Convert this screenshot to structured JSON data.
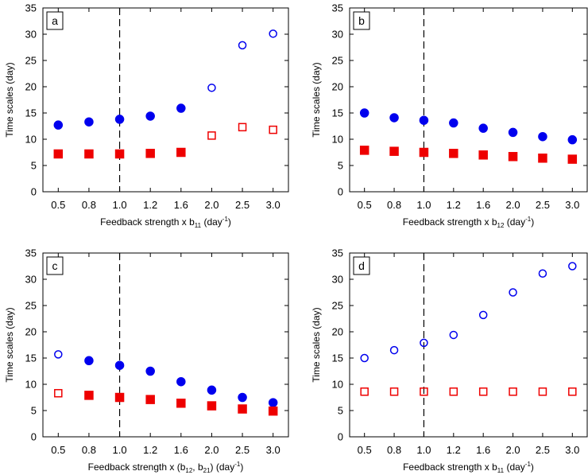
{
  "chart_data": [
    {
      "type": "scatter",
      "panel_label": "a",
      "xlabel": "Feedback strength x b",
      "xlabel_sub": "11",
      "xlabel_unit": "(day",
      "xlabel_unit_sup": "-1",
      "xlabel_unit_end": ")",
      "ylabel": "Time scales (day)",
      "ylim": [
        0,
        35
      ],
      "yticks": [
        0,
        5,
        10,
        15,
        20,
        25,
        30,
        35
      ],
      "xticks": [
        0.5,
        0.8,
        1.0,
        1.2,
        1.6,
        2.0,
        2.5,
        3.0
      ],
      "xtick_labels": [
        "0.5",
        "0.8",
        "1.0",
        "1.2",
        "1.6",
        "2.0",
        "2.5",
        "3.0"
      ],
      "reference_line_x": 1.0,
      "series": [
        {
          "marker": "circle",
          "color": "#0000ee",
          "x": [
            0.5,
            0.8,
            1.0,
            1.2,
            1.6,
            2.0,
            2.5,
            3.0
          ],
          "values": [
            12.7,
            13.3,
            13.8,
            14.4,
            15.9,
            19.8,
            27.9,
            30.1
          ],
          "filled": [
            true,
            true,
            true,
            true,
            true,
            false,
            false,
            false
          ]
        },
        {
          "marker": "square",
          "color": "#ee0000",
          "x": [
            0.5,
            0.8,
            1.0,
            1.2,
            1.6,
            2.0,
            2.5,
            3.0
          ],
          "values": [
            7.2,
            7.2,
            7.2,
            7.3,
            7.5,
            10.7,
            12.3,
            11.8
          ],
          "filled": [
            true,
            true,
            true,
            true,
            true,
            false,
            false,
            false
          ]
        }
      ]
    },
    {
      "type": "scatter",
      "panel_label": "b",
      "xlabel": "Feedback strength x b",
      "xlabel_sub": "12",
      "xlabel_unit": "(day",
      "xlabel_unit_sup": "-1",
      "xlabel_unit_end": ")",
      "ylabel": "Time scales (day)",
      "ylim": [
        0,
        35
      ],
      "yticks": [
        0,
        5,
        10,
        15,
        20,
        25,
        30,
        35
      ],
      "xticks": [
        0.5,
        0.8,
        1.0,
        1.2,
        1.6,
        2.0,
        2.5,
        3.0
      ],
      "xtick_labels": [
        "0.5",
        "0.8",
        "1.0",
        "1.2",
        "1.6",
        "2.0",
        "2.5",
        "3.0"
      ],
      "reference_line_x": 1.0,
      "series": [
        {
          "marker": "circle",
          "color": "#0000ee",
          "x": [
            0.5,
            0.8,
            1.0,
            1.2,
            1.6,
            2.0,
            2.5,
            3.0
          ],
          "values": [
            15.0,
            14.1,
            13.6,
            13.1,
            12.1,
            11.3,
            10.5,
            9.9
          ],
          "filled": [
            true,
            true,
            true,
            true,
            true,
            true,
            true,
            true
          ]
        },
        {
          "marker": "square",
          "color": "#ee0000",
          "x": [
            0.5,
            0.8,
            1.0,
            1.2,
            1.6,
            2.0,
            2.5,
            3.0
          ],
          "values": [
            7.9,
            7.7,
            7.5,
            7.3,
            7.0,
            6.7,
            6.4,
            6.2
          ],
          "filled": [
            true,
            true,
            true,
            true,
            true,
            true,
            true,
            true
          ]
        }
      ]
    },
    {
      "type": "scatter",
      "panel_label": "c",
      "xlabel": "Feedback strength x (b",
      "xlabel_sub": "12",
      "xlabel_mid": ", b",
      "xlabel_sub2": "21",
      "xlabel_unit": ") (day",
      "xlabel_unit_sup": "-1",
      "xlabel_unit_end": ")",
      "ylabel": "Time scales (day)",
      "ylim": [
        0,
        35
      ],
      "yticks": [
        0,
        5,
        10,
        15,
        20,
        25,
        30,
        35
      ],
      "xticks": [
        0.5,
        0.8,
        1.0,
        1.2,
        1.6,
        2.0,
        2.5,
        3.0
      ],
      "xtick_labels": [
        "0.5",
        "0.8",
        "1.0",
        "1.2",
        "1.6",
        "2.0",
        "2.5",
        "3.0"
      ],
      "reference_line_x": 1.0,
      "series": [
        {
          "marker": "circle",
          "color": "#0000ee",
          "x": [
            0.5,
            0.8,
            1.0,
            1.2,
            1.6,
            2.0,
            2.5,
            3.0
          ],
          "values": [
            15.7,
            14.5,
            13.6,
            12.5,
            10.5,
            8.9,
            7.5,
            6.5
          ],
          "filled": [
            false,
            true,
            true,
            true,
            true,
            true,
            true,
            true
          ]
        },
        {
          "marker": "square",
          "color": "#ee0000",
          "x": [
            0.5,
            0.8,
            1.0,
            1.2,
            1.6,
            2.0,
            2.5,
            3.0
          ],
          "values": [
            8.3,
            7.9,
            7.5,
            7.1,
            6.4,
            5.9,
            5.3,
            4.9
          ],
          "filled": [
            false,
            true,
            true,
            true,
            true,
            true,
            true,
            true
          ]
        }
      ]
    },
    {
      "type": "scatter",
      "panel_label": "d",
      "xlabel": "Feedback strength x b",
      "xlabel_sub": "11",
      "xlabel_unit": "(day",
      "xlabel_unit_sup": "-1",
      "xlabel_unit_end": ")",
      "ylabel": "Time scales (day)",
      "ylim": [
        0,
        35
      ],
      "yticks": [
        0,
        5,
        10,
        15,
        20,
        25,
        30,
        35
      ],
      "xticks": [
        0.5,
        0.8,
        1.0,
        1.2,
        1.6,
        2.0,
        2.5,
        3.0
      ],
      "xtick_labels": [
        "0.5",
        "0.8",
        "1.0",
        "1.2",
        "1.6",
        "2.0",
        "2.5",
        "3.0"
      ],
      "reference_line_x": 1.0,
      "series": [
        {
          "marker": "circle",
          "color": "#0000ee",
          "x": [
            0.5,
            0.8,
            1.0,
            1.2,
            1.6,
            2.0,
            2.5,
            3.0
          ],
          "values": [
            15.0,
            16.5,
            17.9,
            19.4,
            23.2,
            27.5,
            31.1,
            32.5
          ],
          "filled": [
            false,
            false,
            false,
            false,
            false,
            false,
            false,
            false
          ]
        },
        {
          "marker": "square",
          "color": "#ee0000",
          "x": [
            0.5,
            0.8,
            1.0,
            1.2,
            1.6,
            2.0,
            2.5,
            3.0
          ],
          "values": [
            8.6,
            8.6,
            8.6,
            8.6,
            8.6,
            8.6,
            8.6,
            8.6
          ],
          "filled": [
            false,
            false,
            false,
            false,
            false,
            false,
            false,
            false
          ]
        }
      ]
    }
  ]
}
